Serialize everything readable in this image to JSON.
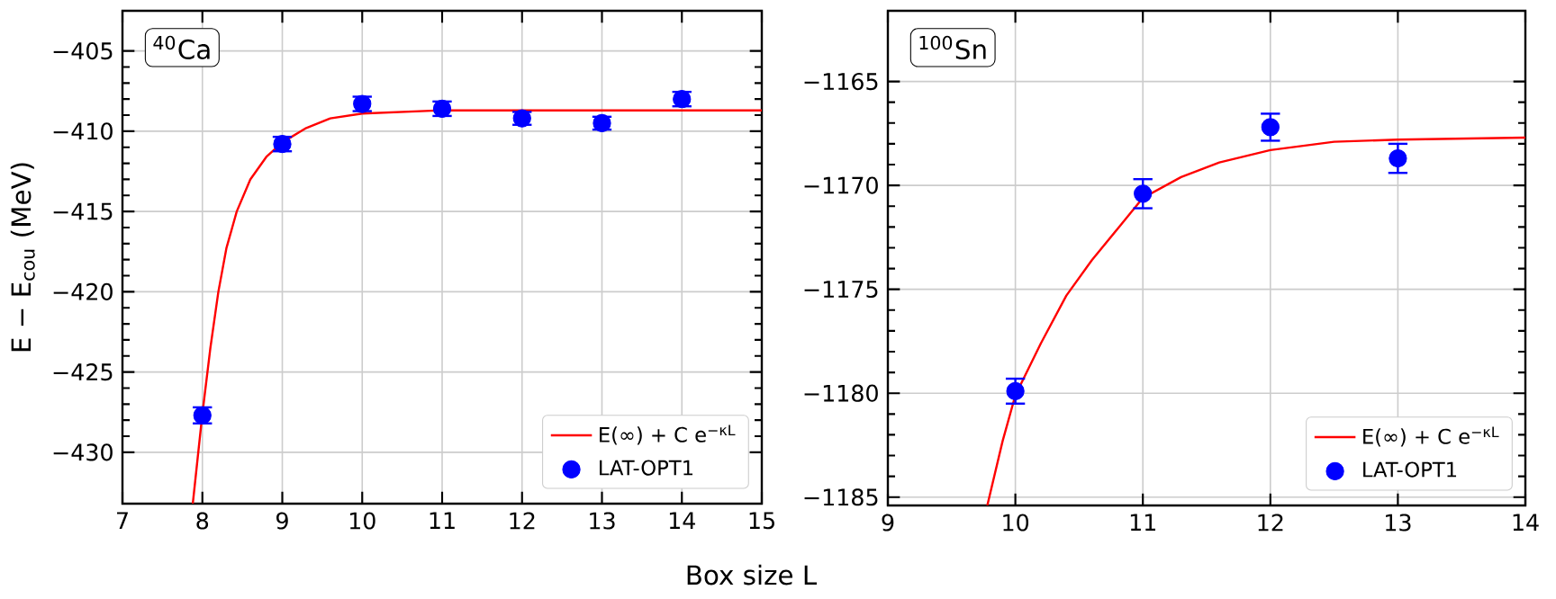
{
  "chart_data": [
    {
      "type": "scatter",
      "xlabel": "Box size L",
      "ylabel": "E − E$_{cou}$ (MeV)",
      "annotations": [
        "$^{40}$Ca"
      ],
      "xlim": [
        7,
        15
      ],
      "ylim": [
        -433.2,
        -402.5
      ],
      "xticks": [
        7,
        8,
        9,
        10,
        11,
        12,
        13,
        14,
        15
      ],
      "yticks": [
        {
          "value": -405,
          "label": "−405"
        },
        {
          "value": -410,
          "label": "−410"
        },
        {
          "value": -415,
          "label": "−415"
        },
        {
          "value": -420,
          "label": "−420"
        },
        {
          "value": -425,
          "label": "−425"
        },
        {
          "value": -430,
          "label": "−430"
        }
      ],
      "grid": true,
      "legend": "bottom right",
      "series": [
        {
          "name": "E(∞) + C e$^{−κL}$",
          "type": "line",
          "color": "#ff0000",
          "marker": "none",
          "x": [
            7.88,
            8.0,
            8.1,
            8.2,
            8.3,
            8.43,
            8.6,
            8.8,
            9.0,
            9.3,
            9.6,
            10,
            10.5,
            11,
            12,
            15
          ],
          "values": [
            -433.2,
            -427.6,
            -423.5,
            -420,
            -417.3,
            -415,
            -413,
            -411.6,
            -410.7,
            -409.8,
            -409.2,
            -408.9,
            -408.8,
            -408.7,
            -408.7,
            -408.7
          ]
        },
        {
          "name": "LAT-OPT1",
          "color": "#0000ff",
          "marker": "circle",
          "x": [
            8,
            9,
            10,
            11,
            12,
            13,
            14
          ],
          "values": [
            -427.7,
            -410.8,
            -408.3,
            -408.6,
            -409.2,
            -409.5,
            -408.0
          ],
          "errors": [
            0.5,
            0.45,
            0.45,
            0.45,
            0.4,
            0.4,
            0.45
          ]
        }
      ]
    },
    {
      "type": "scatter",
      "annotations": [
        "$^{100}$Sn"
      ],
      "xlim": [
        9,
        14
      ],
      "ylim": [
        -1185.4,
        -1161.6
      ],
      "xticks": [
        9,
        10,
        11,
        12,
        13,
        14
      ],
      "yticks": [
        {
          "value": -1165,
          "label": "−1165"
        },
        {
          "value": -1170,
          "label": "−1170"
        },
        {
          "value": -1175,
          "label": "−1175"
        },
        {
          "value": -1180,
          "label": "−1180"
        },
        {
          "value": -1185,
          "label": "−1185"
        }
      ],
      "grid": true,
      "legend": "bottom right",
      "series": [
        {
          "name": "E(∞) + C e$^{−κL}$",
          "type": "line",
          "color": "#ff0000",
          "marker": "none",
          "x": [
            9.78,
            9.9,
            10,
            10.2,
            10.4,
            10.6,
            10.8,
            11,
            11.3,
            11.6,
            12,
            12.5,
            13,
            14
          ],
          "values": [
            -1185.4,
            -1182.3,
            -1180.1,
            -1177.6,
            -1175.3,
            -1173.6,
            -1172.1,
            -1170.6,
            -1169.6,
            -1168.9,
            -1168.3,
            -1167.9,
            -1167.8,
            -1167.7
          ]
        },
        {
          "name": "LAT-OPT1",
          "color": "#0000ff",
          "marker": "circle",
          "x": [
            10,
            11,
            12,
            13
          ],
          "values": [
            -1179.9,
            -1170.4,
            -1167.2,
            -1168.7
          ],
          "errors": [
            0.6,
            0.7,
            0.65,
            0.7
          ]
        }
      ]
    }
  ]
}
